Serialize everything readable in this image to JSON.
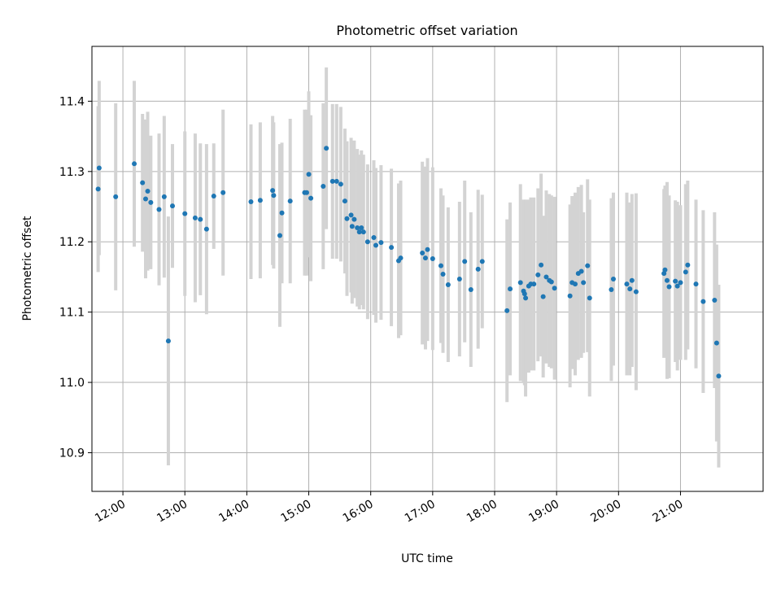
{
  "chart_data": {
    "type": "scatter",
    "title": "Photometric offset variation",
    "xlabel": "UTC time",
    "ylabel": "Photometric offset",
    "grid": true,
    "xlim": [
      "11:30",
      "22:20"
    ],
    "ylim": [
      10.845,
      11.478
    ],
    "x_ticks": [
      "12:00",
      "13:00",
      "14:00",
      "15:00",
      "16:00",
      "17:00",
      "18:00",
      "19:00",
      "20:00",
      "21:00"
    ],
    "y_ticks": [
      10.9,
      11.0,
      11.1,
      11.2,
      11.3,
      11.4
    ],
    "point_color": "#1f77b4",
    "errorbar_color": "#d3d3d3",
    "points": [
      {
        "t": "11:36",
        "y": 11.275,
        "err": 0.118
      },
      {
        "t": "11:37",
        "y": 11.305,
        "err": 0.124
      },
      {
        "t": "11:53",
        "y": 11.264,
        "err": 0.133
      },
      {
        "t": "12:11",
        "y": 11.311,
        "err": 0.118
      },
      {
        "t": "12:19",
        "y": 11.284,
        "err": 0.098
      },
      {
        "t": "12:22",
        "y": 11.261,
        "err": 0.113
      },
      {
        "t": "12:24",
        "y": 11.272,
        "err": 0.113
      },
      {
        "t": "12:27",
        "y": 11.256,
        "err": 0.095
      },
      {
        "t": "12:35",
        "y": 11.246,
        "err": 0.108
      },
      {
        "t": "12:40",
        "y": 11.264,
        "err": 0.115
      },
      {
        "t": "12:44",
        "y": 11.059,
        "err": 0.177
      },
      {
        "t": "12:48",
        "y": 11.251,
        "err": 0.088
      },
      {
        "t": "13:00",
        "y": 11.24,
        "err": 0.117
      },
      {
        "t": "13:10",
        "y": 11.234,
        "err": 0.12
      },
      {
        "t": "13:15",
        "y": 11.232,
        "err": 0.108
      },
      {
        "t": "13:21",
        "y": 11.218,
        "err": 0.121
      },
      {
        "t": "13:28",
        "y": 11.265,
        "err": 0.075
      },
      {
        "t": "13:37",
        "y": 11.27,
        "err": 0.118
      },
      {
        "t": "14:04",
        "y": 11.257,
        "err": 0.11
      },
      {
        "t": "14:13",
        "y": 11.259,
        "err": 0.111
      },
      {
        "t": "14:25",
        "y": 11.273,
        "err": 0.106
      },
      {
        "t": "14:26",
        "y": 11.266,
        "err": 0.104
      },
      {
        "t": "14:32",
        "y": 11.209,
        "err": 0.13
      },
      {
        "t": "14:34",
        "y": 11.241,
        "err": 0.1
      },
      {
        "t": "14:42",
        "y": 11.258,
        "err": 0.117
      },
      {
        "t": "14:56",
        "y": 11.27,
        "err": 0.118
      },
      {
        "t": "14:58",
        "y": 11.27,
        "err": 0.118
      },
      {
        "t": "15:00",
        "y": 11.296,
        "err": 0.118
      },
      {
        "t": "15:02",
        "y": 11.262,
        "err": 0.118
      },
      {
        "t": "15:14",
        "y": 11.279,
        "err": 0.118
      },
      {
        "t": "15:17",
        "y": 11.333,
        "err": 0.115
      },
      {
        "t": "15:23",
        "y": 11.286,
        "err": 0.11
      },
      {
        "t": "15:27",
        "y": 11.286,
        "err": 0.11
      },
      {
        "t": "15:31",
        "y": 11.282,
        "err": 0.11
      },
      {
        "t": "15:35",
        "y": 11.258,
        "err": 0.103
      },
      {
        "t": "15:37",
        "y": 11.233,
        "err": 0.11
      },
      {
        "t": "15:41",
        "y": 11.238,
        "err": 0.11
      },
      {
        "t": "15:42",
        "y": 11.222,
        "err": 0.11
      },
      {
        "t": "15:44",
        "y": 11.232,
        "err": 0.112
      },
      {
        "t": "15:47",
        "y": 11.22,
        "err": 0.112
      },
      {
        "t": "15:49",
        "y": 11.214,
        "err": 0.11
      },
      {
        "t": "15:51",
        "y": 11.22,
        "err": 0.11
      },
      {
        "t": "15:53",
        "y": 11.214,
        "err": 0.11
      },
      {
        "t": "15:57",
        "y": 11.2,
        "err": 0.11
      },
      {
        "t": "16:03",
        "y": 11.206,
        "err": 0.11
      },
      {
        "t": "16:05",
        "y": 11.195,
        "err": 0.11
      },
      {
        "t": "16:10",
        "y": 11.199,
        "err": 0.11
      },
      {
        "t": "16:20",
        "y": 11.192,
        "err": 0.112
      },
      {
        "t": "16:27",
        "y": 11.173,
        "err": 0.11
      },
      {
        "t": "16:29",
        "y": 11.177,
        "err": 0.11
      },
      {
        "t": "16:50",
        "y": 11.184,
        "err": 0.13
      },
      {
        "t": "16:53",
        "y": 11.177,
        "err": 0.13
      },
      {
        "t": "16:55",
        "y": 11.189,
        "err": 0.13
      },
      {
        "t": "17:00",
        "y": 11.176,
        "err": 0.13
      },
      {
        "t": "17:08",
        "y": 11.166,
        "err": 0.11
      },
      {
        "t": "17:10",
        "y": 11.154,
        "err": 0.112
      },
      {
        "t": "17:15",
        "y": 11.139,
        "err": 0.11
      },
      {
        "t": "17:26",
        "y": 11.147,
        "err": 0.11
      },
      {
        "t": "17:31",
        "y": 11.172,
        "err": 0.115
      },
      {
        "t": "17:37",
        "y": 11.132,
        "err": 0.11
      },
      {
        "t": "17:44",
        "y": 11.161,
        "err": 0.113
      },
      {
        "t": "17:48",
        "y": 11.172,
        "err": 0.095
      },
      {
        "t": "18:12",
        "y": 11.102,
        "err": 0.13
      },
      {
        "t": "18:15",
        "y": 11.133,
        "err": 0.123
      },
      {
        "t": "18:25",
        "y": 11.142,
        "err": 0.14
      },
      {
        "t": "18:28",
        "y": 11.13,
        "err": 0.13
      },
      {
        "t": "18:29",
        "y": 11.126,
        "err": 0.13
      },
      {
        "t": "18:30",
        "y": 11.12,
        "err": 0.14
      },
      {
        "t": "18:33",
        "y": 11.137,
        "err": 0.123
      },
      {
        "t": "18:35",
        "y": 11.14,
        "err": 0.123
      },
      {
        "t": "18:38",
        "y": 11.14,
        "err": 0.123
      },
      {
        "t": "18:42",
        "y": 11.153,
        "err": 0.123
      },
      {
        "t": "18:45",
        "y": 11.167,
        "err": 0.13
      },
      {
        "t": "18:47",
        "y": 11.122,
        "err": 0.115
      },
      {
        "t": "18:50",
        "y": 11.15,
        "err": 0.123
      },
      {
        "t": "18:53",
        "y": 11.145,
        "err": 0.123
      },
      {
        "t": "18:55",
        "y": 11.143,
        "err": 0.123
      },
      {
        "t": "18:58",
        "y": 11.134,
        "err": 0.13
      },
      {
        "t": "19:13",
        "y": 11.123,
        "err": 0.13
      },
      {
        "t": "19:15",
        "y": 11.142,
        "err": 0.123
      },
      {
        "t": "19:18",
        "y": 11.14,
        "err": 0.13
      },
      {
        "t": "19:21",
        "y": 11.155,
        "err": 0.123
      },
      {
        "t": "19:24",
        "y": 11.158,
        "err": 0.123
      },
      {
        "t": "19:26",
        "y": 11.142,
        "err": 0.1
      },
      {
        "t": "19:30",
        "y": 11.166,
        "err": 0.123
      },
      {
        "t": "19:32",
        "y": 11.12,
        "err": 0.14
      },
      {
        "t": "19:53",
        "y": 11.132,
        "err": 0.13
      },
      {
        "t": "19:55",
        "y": 11.147,
        "err": 0.123
      },
      {
        "t": "20:08",
        "y": 11.14,
        "err": 0.13
      },
      {
        "t": "20:11",
        "y": 11.133,
        "err": 0.123
      },
      {
        "t": "20:13",
        "y": 11.145,
        "err": 0.123
      },
      {
        "t": "20:17",
        "y": 11.129,
        "err": 0.14
      },
      {
        "t": "20:44",
        "y": 11.155,
        "err": 0.12
      },
      {
        "t": "20:45",
        "y": 11.16,
        "err": 0.12
      },
      {
        "t": "20:47",
        "y": 11.145,
        "err": 0.14
      },
      {
        "t": "20:49",
        "y": 11.136,
        "err": 0.13
      },
      {
        "t": "20:55",
        "y": 11.144,
        "err": 0.115
      },
      {
        "t": "20:57",
        "y": 11.137,
        "err": 0.12
      },
      {
        "t": "21:00",
        "y": 11.142,
        "err": 0.11
      },
      {
        "t": "21:05",
        "y": 11.157,
        "err": 0.125
      },
      {
        "t": "21:07",
        "y": 11.167,
        "err": 0.12
      },
      {
        "t": "21:15",
        "y": 11.14,
        "err": 0.12
      },
      {
        "t": "21:22",
        "y": 11.115,
        "err": 0.13
      },
      {
        "t": "21:33",
        "y": 11.117,
        "err": 0.125
      },
      {
        "t": "21:35",
        "y": 11.056,
        "err": 0.14
      },
      {
        "t": "21:37",
        "y": 11.009,
        "err": 0.13
      }
    ]
  }
}
